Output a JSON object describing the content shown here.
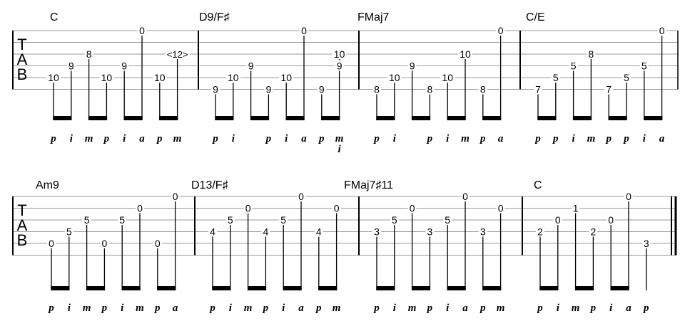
{
  "tab_label": [
    "T",
    "A",
    "B"
  ],
  "systems": [
    {
      "measures": [
        {
          "chord": "C",
          "notes": [
            {
              "string": 5,
              "fret": "10",
              "finger": "p"
            },
            {
              "string": 4,
              "fret": "9",
              "finger": "i"
            },
            {
              "string": 3,
              "fret": "8",
              "finger": "m"
            },
            {
              "string": 5,
              "fret": "10",
              "finger": "p"
            },
            {
              "string": 4,
              "fret": "9",
              "finger": "i"
            },
            {
              "string": 1,
              "fret": "0",
              "finger": "a"
            },
            {
              "string": 5,
              "fret": "10",
              "finger": "p"
            },
            {
              "string": 3,
              "fret": "<12>",
              "finger": "m"
            }
          ]
        },
        {
          "chord": "D9/F♯",
          "notes": [
            {
              "string": 6,
              "fret": "9",
              "finger": "p"
            },
            {
              "string": 5,
              "fret": "10",
              "finger": "i"
            },
            {
              "string": 4,
              "fret": "9",
              "finger": ""
            },
            {
              "string": 6,
              "fret": "9",
              "finger": "p"
            },
            {
              "string": 5,
              "fret": "10",
              "finger": "i"
            },
            {
              "string": 1,
              "fret": "0",
              "finger": "a"
            },
            {
              "string": 6,
              "fret": "9",
              "finger": "p"
            },
            {
              "string": 4,
              "fret": "9",
              "string2": 3,
              "fret2": "10",
              "finger": "m",
              "finger2": "i"
            }
          ]
        },
        {
          "chord": "FMaj7",
          "notes": [
            {
              "string": 6,
              "fret": "8",
              "finger": "p"
            },
            {
              "string": 5,
              "fret": "10",
              "finger": "i"
            },
            {
              "string": 4,
              "fret": "9",
              "finger": ""
            },
            {
              "string": 6,
              "fret": "8",
              "finger": "p"
            },
            {
              "string": 5,
              "fret": "10",
              "finger": "i"
            },
            {
              "string": 3,
              "fret": "10",
              "finger": "m"
            },
            {
              "string": 6,
              "fret": "8",
              "finger": "p"
            },
            {
              "string": 1,
              "fret": "0",
              "finger": "a"
            }
          ]
        },
        {
          "chord": "C/E",
          "notes": [
            {
              "string": 6,
              "fret": "7",
              "finger": "p"
            },
            {
              "string": 5,
              "fret": "5",
              "finger": "p"
            },
            {
              "string": 4,
              "fret": "5",
              "finger": "i"
            },
            {
              "string": 3,
              "fret": "8",
              "finger": "m"
            },
            {
              "string": 6,
              "fret": "7",
              "finger": "p"
            },
            {
              "string": 5,
              "fret": "5",
              "finger": "p"
            },
            {
              "string": 4,
              "fret": "5",
              "finger": "i"
            },
            {
              "string": 1,
              "fret": "0",
              "finger": "a"
            }
          ]
        }
      ]
    },
    {
      "measures": [
        {
          "chord": "Am9",
          "notes": [
            {
              "string": 5,
              "fret": "0",
              "finger": "p"
            },
            {
              "string": 4,
              "fret": "5",
              "finger": "i"
            },
            {
              "string": 3,
              "fret": "5",
              "finger": "m"
            },
            {
              "string": 5,
              "fret": "0",
              "finger": "p"
            },
            {
              "string": 3,
              "fret": "5",
              "finger": "i"
            },
            {
              "string": 2,
              "fret": "0",
              "finger": "m"
            },
            {
              "string": 5,
              "fret": "0",
              "finger": "p"
            },
            {
              "string": 1,
              "fret": "0",
              "finger": "a"
            }
          ]
        },
        {
          "chord": "D13/F♯",
          "notes": [
            {
              "string": 4,
              "fret": "4",
              "finger": "p"
            },
            {
              "string": 3,
              "fret": "5",
              "finger": "i"
            },
            {
              "string": 2,
              "fret": "0",
              "finger": "m"
            },
            {
              "string": 4,
              "fret": "4",
              "finger": "p"
            },
            {
              "string": 3,
              "fret": "5",
              "finger": "i"
            },
            {
              "string": 1,
              "fret": "0",
              "finger": "a"
            },
            {
              "string": 4,
              "fret": "4",
              "finger": "p"
            },
            {
              "string": 2,
              "fret": "0",
              "finger": "m"
            }
          ]
        },
        {
          "chord": "FMaj7♯11",
          "notes": [
            {
              "string": 4,
              "fret": "3",
              "finger": "p"
            },
            {
              "string": 3,
              "fret": "5",
              "finger": "i"
            },
            {
              "string": 2,
              "fret": "0",
              "finger": "m"
            },
            {
              "string": 4,
              "fret": "3",
              "finger": "p"
            },
            {
              "string": 3,
              "fret": "5",
              "finger": "i"
            },
            {
              "string": 1,
              "fret": "0",
              "finger": "a"
            },
            {
              "string": 4,
              "fret": "3",
              "finger": "p"
            },
            {
              "string": 2,
              "fret": "0",
              "finger": "m"
            }
          ]
        },
        {
          "chord": "C",
          "notes": [
            {
              "string": 4,
              "fret": "2",
              "finger": "p"
            },
            {
              "string": 3,
              "fret": "0",
              "finger": "i"
            },
            {
              "string": 2,
              "fret": "1",
              "finger": "m"
            },
            {
              "string": 4,
              "fret": "2",
              "finger": "p"
            },
            {
              "string": 3,
              "fret": "0",
              "finger": "i"
            },
            {
              "string": 1,
              "fret": "0",
              "finger": "a"
            },
            {
              "string": 5,
              "fret": "3",
              "finger": "p"
            }
          ]
        }
      ]
    }
  ]
}
